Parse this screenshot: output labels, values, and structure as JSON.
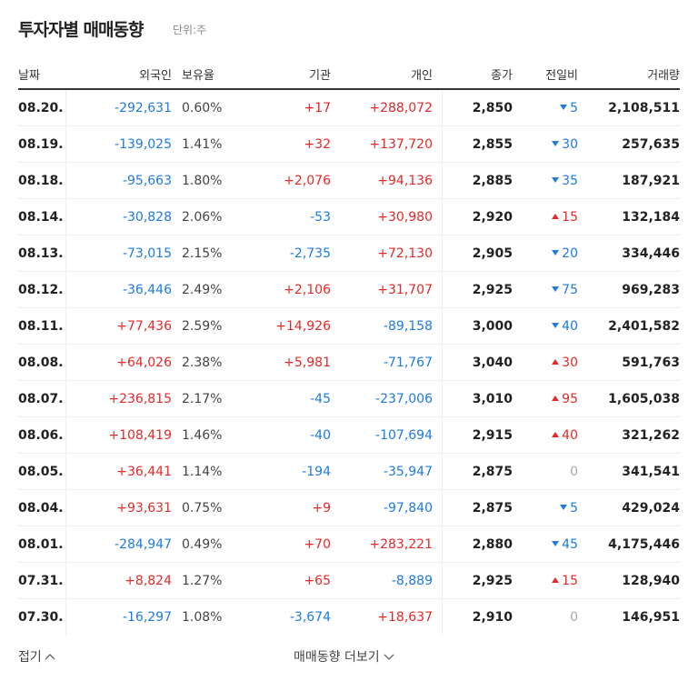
{
  "header": {
    "title": "투자자별 매매동향",
    "unit": "단위:주"
  },
  "table": {
    "columns": [
      "날짜",
      "외국인",
      "보유율",
      "기관",
      "개인",
      "종가",
      "전일비",
      "거래량"
    ],
    "rows": [
      [
        "08.20.",
        "-292,631",
        "0.60%",
        "+17",
        "+288,072",
        "2,850",
        "5",
        "2,108,511"
      ],
      [
        "08.19.",
        "-139,025",
        "1.41%",
        "+32",
        "+137,720",
        "2,855",
        "30",
        "257,635"
      ],
      [
        "08.18.",
        "-95,663",
        "1.80%",
        "+2,076",
        "+94,136",
        "2,885",
        "35",
        "187,921"
      ],
      [
        "08.14.",
        "-30,828",
        "2.06%",
        "-53",
        "+30,980",
        "2,920",
        "15",
        "132,184"
      ],
      [
        "08.13.",
        "-73,015",
        "2.15%",
        "-2,735",
        "+72,130",
        "2,905",
        "20",
        "334,446"
      ],
      [
        "08.12.",
        "-36,446",
        "2.49%",
        "+2,106",
        "+31,707",
        "2,925",
        "75",
        "969,283"
      ],
      [
        "08.11.",
        "+77,436",
        "2.59%",
        "+14,926",
        "-89,158",
        "3,000",
        "40",
        "2,401,582"
      ],
      [
        "08.08.",
        "+64,026",
        "2.38%",
        "+5,981",
        "-71,767",
        "3,040",
        "30",
        "591,763"
      ],
      [
        "08.07.",
        "+236,815",
        "2.17%",
        "-45",
        "-237,006",
        "3,010",
        "95",
        "1,605,038"
      ],
      [
        "08.06.",
        "+108,419",
        "1.46%",
        "-40",
        "-107,694",
        "2,915",
        "40",
        "321,262"
      ],
      [
        "08.05.",
        "+36,441",
        "1.14%",
        "-194",
        "-35,947",
        "2,875",
        "0",
        "341,541"
      ],
      [
        "08.04.",
        "+93,631",
        "0.75%",
        "+9",
        "-97,840",
        "2,875",
        "5",
        "429,024"
      ],
      [
        "08.01.",
        "-284,947",
        "0.49%",
        "+70",
        "+283,221",
        "2,880",
        "45",
        "4,175,446"
      ],
      [
        "07.31.",
        "+8,824",
        "1.27%",
        "+65",
        "-8,889",
        "2,925",
        "15",
        "128,940"
      ],
      [
        "07.30.",
        "-16,297",
        "1.08%",
        "-3,674",
        "+18,637",
        "2,910",
        "0",
        "146,951"
      ]
    ],
    "change_direction": [
      "down",
      "down",
      "down",
      "up",
      "down",
      "down",
      "down",
      "up",
      "up",
      "up",
      "none",
      "down",
      "down",
      "up",
      "none"
    ]
  },
  "footer": {
    "collapse": "접기",
    "more": "매매동향 더보기"
  }
}
